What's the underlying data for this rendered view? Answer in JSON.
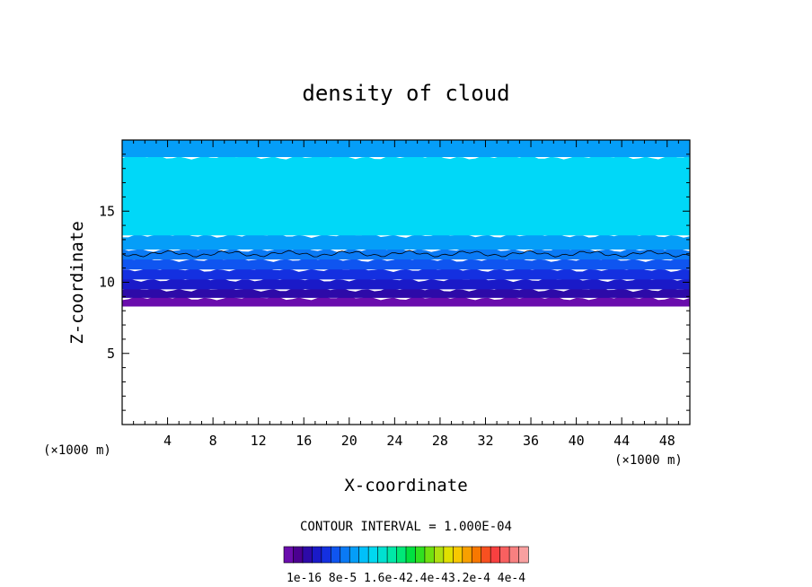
{
  "chart_data": {
    "type": "heatmap",
    "title": "density of cloud",
    "xlabel": "X-coordinate",
    "ylabel": "Z-coordinate",
    "x_unit_label_left": "(×1000 m)",
    "x_unit_label_right": "(×1000 m)",
    "xlim": [
      0,
      50
    ],
    "ylim": [
      0,
      20
    ],
    "xticks": [
      4,
      8,
      12,
      16,
      20,
      24,
      28,
      32,
      36,
      40,
      44,
      48
    ],
    "yticks": [
      5,
      10,
      15
    ],
    "contour_interval_text": "CONTOUR INTERVAL = 1.000E-04",
    "colorbar_labels": [
      "1e-16",
      "8e-5",
      "1.6e-4",
      "2.4e-4",
      "3.2e-4",
      "4e-4"
    ],
    "colorbar_label_text": "1e-16 8e-5 1.6e-42.4e-43.2e-4 4e-4",
    "colorbar_colors": [
      "#6a0dad",
      "#4b0090",
      "#2d0aa8",
      "#1a1ac8",
      "#1430e0",
      "#0f55f0",
      "#0a7af5",
      "#059ef8",
      "#00c0fa",
      "#00d8f0",
      "#00e0d0",
      "#00e8a8",
      "#00e878",
      "#00e040",
      "#30e020",
      "#70e010",
      "#b0e010",
      "#e0e000",
      "#f8c800",
      "#f8a000",
      "#f87800",
      "#f85020",
      "#f84040",
      "#f86060",
      "#f88080",
      "#f8a0a0"
    ],
    "bands": [
      {
        "z_from": 0.0,
        "z_to": 8.3,
        "color": "#ffffff"
      },
      {
        "z_from": 8.3,
        "z_to": 8.9,
        "color": "#6a0dad"
      },
      {
        "z_from": 8.9,
        "z_to": 9.5,
        "color": "#2d0aa8"
      },
      {
        "z_from": 9.5,
        "z_to": 10.2,
        "color": "#1a1ac8"
      },
      {
        "z_from": 10.2,
        "z_to": 10.9,
        "color": "#1430e0"
      },
      {
        "z_from": 10.9,
        "z_to": 11.6,
        "color": "#0f55f0"
      },
      {
        "z_from": 11.6,
        "z_to": 12.3,
        "color": "#0a7af5"
      },
      {
        "z_from": 12.3,
        "z_to": 13.3,
        "color": "#059ef8"
      },
      {
        "z_from": 13.3,
        "z_to": 18.8,
        "color": "#00d8f8"
      },
      {
        "z_from": 18.8,
        "z_to": 20.0,
        "color": "#059ef8"
      }
    ],
    "contour_line_z": 12.0
  }
}
